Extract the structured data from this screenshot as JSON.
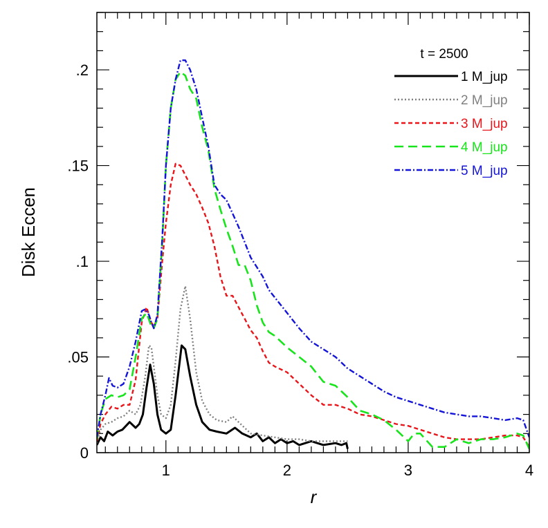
{
  "chart_data": {
    "type": "line",
    "title": "",
    "xlabel": "r",
    "ylabel": "Disk Eccen",
    "xlim": [
      0.43,
      4.0
    ],
    "ylim": [
      0,
      0.23
    ],
    "x_ticks": [
      {
        "value": 1,
        "label": "1"
      },
      {
        "value": 2,
        "label": "2"
      },
      {
        "value": 3,
        "label": "3"
      },
      {
        "value": 4,
        "label": "4"
      }
    ],
    "y_ticks": [
      {
        "value": 0,
        "label": "0"
      },
      {
        "value": 0.05,
        "label": ".05"
      },
      {
        "value": 0.1,
        "label": ".1"
      },
      {
        "value": 0.15,
        "label": ".15"
      },
      {
        "value": 0.2,
        "label": ".2"
      }
    ],
    "x_minor_step": 0.1,
    "y_minor_step": 0.01,
    "grid": false,
    "legend": {
      "title": "t = 2500",
      "position": "top-right"
    },
    "series": [
      {
        "name": "1 M_jup",
        "color": "#000000",
        "dash": "solid",
        "points": [
          [
            0.43,
            0.004
          ],
          [
            0.46,
            0.008
          ],
          [
            0.49,
            0.006
          ],
          [
            0.52,
            0.011
          ],
          [
            0.56,
            0.009
          ],
          [
            0.6,
            0.011
          ],
          [
            0.64,
            0.012
          ],
          [
            0.7,
            0.016
          ],
          [
            0.75,
            0.013
          ],
          [
            0.78,
            0.015
          ],
          [
            0.81,
            0.02
          ],
          [
            0.84,
            0.034
          ],
          [
            0.87,
            0.046
          ],
          [
            0.9,
            0.036
          ],
          [
            0.93,
            0.02
          ],
          [
            0.96,
            0.012
          ],
          [
            1.0,
            0.01
          ],
          [
            1.04,
            0.012
          ],
          [
            1.08,
            0.03
          ],
          [
            1.13,
            0.056
          ],
          [
            1.16,
            0.054
          ],
          [
            1.2,
            0.04
          ],
          [
            1.25,
            0.025
          ],
          [
            1.3,
            0.016
          ],
          [
            1.36,
            0.012
          ],
          [
            1.42,
            0.011
          ],
          [
            1.5,
            0.01
          ],
          [
            1.57,
            0.013
          ],
          [
            1.63,
            0.01
          ],
          [
            1.7,
            0.008
          ],
          [
            1.75,
            0.01
          ],
          [
            1.8,
            0.006
          ],
          [
            1.85,
            0.008
          ],
          [
            1.9,
            0.005
          ],
          [
            1.95,
            0.007
          ],
          [
            2.0,
            0.005
          ],
          [
            2.05,
            0.006
          ],
          [
            2.1,
            0.004
          ],
          [
            2.2,
            0.006
          ],
          [
            2.3,
            0.004
          ],
          [
            2.4,
            0.005
          ],
          [
            2.45,
            0.004
          ],
          [
            2.49,
            0.005
          ],
          [
            2.5,
            0.002
          ]
        ]
      },
      {
        "name": "2 M_jup",
        "color": "#808080",
        "dash": "dotted",
        "points": [
          [
            0.43,
            0.005
          ],
          [
            0.46,
            0.012
          ],
          [
            0.5,
            0.015
          ],
          [
            0.55,
            0.016
          ],
          [
            0.6,
            0.018
          ],
          [
            0.65,
            0.019
          ],
          [
            0.7,
            0.022
          ],
          [
            0.75,
            0.02
          ],
          [
            0.79,
            0.025
          ],
          [
            0.83,
            0.04
          ],
          [
            0.86,
            0.056
          ],
          [
            0.88,
            0.055
          ],
          [
            0.9,
            0.045
          ],
          [
            0.93,
            0.03
          ],
          [
            0.96,
            0.02
          ],
          [
            1.0,
            0.018
          ],
          [
            1.04,
            0.025
          ],
          [
            1.08,
            0.048
          ],
          [
            1.12,
            0.075
          ],
          [
            1.16,
            0.087
          ],
          [
            1.2,
            0.07
          ],
          [
            1.25,
            0.042
          ],
          [
            1.3,
            0.027
          ],
          [
            1.36,
            0.02
          ],
          [
            1.42,
            0.017
          ],
          [
            1.5,
            0.016
          ],
          [
            1.55,
            0.019
          ],
          [
            1.6,
            0.016
          ],
          [
            1.7,
            0.01
          ],
          [
            1.8,
            0.009
          ],
          [
            1.9,
            0.008
          ],
          [
            2.0,
            0.007
          ],
          [
            2.1,
            0.007
          ],
          [
            2.2,
            0.006
          ],
          [
            2.3,
            0.006
          ],
          [
            2.4,
            0.006
          ],
          [
            2.5,
            0.006
          ]
        ]
      },
      {
        "name": "3 M_jup",
        "color": "#e8161b",
        "dash": "dashed",
        "points": [
          [
            0.43,
            0.006
          ],
          [
            0.46,
            0.015
          ],
          [
            0.5,
            0.02
          ],
          [
            0.55,
            0.024
          ],
          [
            0.6,
            0.023
          ],
          [
            0.65,
            0.025
          ],
          [
            0.7,
            0.025
          ],
          [
            0.75,
            0.038
          ],
          [
            0.8,
            0.068
          ],
          [
            0.84,
            0.076
          ],
          [
            0.88,
            0.068
          ],
          [
            0.9,
            0.066
          ],
          [
            0.93,
            0.07
          ],
          [
            0.97,
            0.1
          ],
          [
            1.0,
            0.12
          ],
          [
            1.04,
            0.14
          ],
          [
            1.08,
            0.151
          ],
          [
            1.12,
            0.15
          ],
          [
            1.16,
            0.145
          ],
          [
            1.2,
            0.14
          ],
          [
            1.25,
            0.135
          ],
          [
            1.3,
            0.128
          ],
          [
            1.35,
            0.12
          ],
          [
            1.4,
            0.108
          ],
          [
            1.45,
            0.092
          ],
          [
            1.5,
            0.082
          ],
          [
            1.55,
            0.082
          ],
          [
            1.6,
            0.076
          ],
          [
            1.65,
            0.07
          ],
          [
            1.7,
            0.064
          ],
          [
            1.75,
            0.06
          ],
          [
            1.8,
            0.053
          ],
          [
            1.85,
            0.047
          ],
          [
            1.9,
            0.045
          ],
          [
            2.0,
            0.042
          ],
          [
            2.1,
            0.036
          ],
          [
            2.2,
            0.03
          ],
          [
            2.3,
            0.025
          ],
          [
            2.4,
            0.025
          ],
          [
            2.5,
            0.023
          ],
          [
            2.6,
            0.02
          ],
          [
            2.7,
            0.019
          ],
          [
            2.8,
            0.017
          ],
          [
            2.9,
            0.015
          ],
          [
            3.0,
            0.014
          ],
          [
            3.1,
            0.012
          ],
          [
            3.2,
            0.01
          ],
          [
            3.3,
            0.008
          ],
          [
            3.4,
            0.007
          ],
          [
            3.5,
            0.007
          ],
          [
            3.6,
            0.007
          ],
          [
            3.7,
            0.008
          ],
          [
            3.8,
            0.009
          ],
          [
            3.9,
            0.009
          ],
          [
            3.95,
            0.008
          ],
          [
            4.0,
            0.003
          ]
        ]
      },
      {
        "name": "4 M_jup",
        "color": "#17e41a",
        "dash": "long-dashed",
        "points": [
          [
            0.43,
            0.007
          ],
          [
            0.46,
            0.02
          ],
          [
            0.5,
            0.028
          ],
          [
            0.55,
            0.03
          ],
          [
            0.6,
            0.029
          ],
          [
            0.65,
            0.03
          ],
          [
            0.7,
            0.033
          ],
          [
            0.75,
            0.05
          ],
          [
            0.8,
            0.07
          ],
          [
            0.84,
            0.073
          ],
          [
            0.88,
            0.066
          ],
          [
            0.9,
            0.065
          ],
          [
            0.93,
            0.07
          ],
          [
            0.97,
            0.11
          ],
          [
            1.0,
            0.15
          ],
          [
            1.04,
            0.18
          ],
          [
            1.08,
            0.195
          ],
          [
            1.12,
            0.199
          ],
          [
            1.16,
            0.197
          ],
          [
            1.2,
            0.19
          ],
          [
            1.25,
            0.185
          ],
          [
            1.3,
            0.17
          ],
          [
            1.35,
            0.158
          ],
          [
            1.4,
            0.138
          ],
          [
            1.45,
            0.127
          ],
          [
            1.5,
            0.117
          ],
          [
            1.55,
            0.108
          ],
          [
            1.6,
            0.098
          ],
          [
            1.65,
            0.098
          ],
          [
            1.7,
            0.09
          ],
          [
            1.75,
            0.077
          ],
          [
            1.8,
            0.068
          ],
          [
            1.85,
            0.063
          ],
          [
            1.9,
            0.061
          ],
          [
            2.0,
            0.055
          ],
          [
            2.1,
            0.05
          ],
          [
            2.2,
            0.045
          ],
          [
            2.3,
            0.037
          ],
          [
            2.4,
            0.035
          ],
          [
            2.5,
            0.029
          ],
          [
            2.6,
            0.022
          ],
          [
            2.7,
            0.02
          ],
          [
            2.8,
            0.017
          ],
          [
            2.9,
            0.012
          ],
          [
            3.0,
            0.006
          ],
          [
            3.05,
            0.01
          ],
          [
            3.1,
            0.01
          ],
          [
            3.2,
            0.003
          ],
          [
            3.3,
            0.003
          ],
          [
            3.4,
            0.007
          ],
          [
            3.5,
            0.005
          ],
          [
            3.6,
            0.007
          ],
          [
            3.7,
            0.007
          ],
          [
            3.8,
            0.008
          ],
          [
            3.9,
            0.01
          ],
          [
            3.95,
            0.009
          ],
          [
            4.0,
            0.002
          ]
        ]
      },
      {
        "name": "5 M_jup",
        "color": "#1414d8",
        "dash": "dash-dot",
        "points": [
          [
            0.43,
            0.008
          ],
          [
            0.46,
            0.02
          ],
          [
            0.5,
            0.03
          ],
          [
            0.53,
            0.039
          ],
          [
            0.56,
            0.035
          ],
          [
            0.6,
            0.034
          ],
          [
            0.65,
            0.036
          ],
          [
            0.7,
            0.045
          ],
          [
            0.75,
            0.058
          ],
          [
            0.8,
            0.074
          ],
          [
            0.83,
            0.075
          ],
          [
            0.86,
            0.072
          ],
          [
            0.88,
            0.068
          ],
          [
            0.9,
            0.065
          ],
          [
            0.93,
            0.072
          ],
          [
            0.97,
            0.112
          ],
          [
            1.0,
            0.15
          ],
          [
            1.04,
            0.18
          ],
          [
            1.08,
            0.195
          ],
          [
            1.12,
            0.205
          ],
          [
            1.16,
            0.205
          ],
          [
            1.2,
            0.2
          ],
          [
            1.25,
            0.19
          ],
          [
            1.3,
            0.175
          ],
          [
            1.35,
            0.16
          ],
          [
            1.4,
            0.14
          ],
          [
            1.45,
            0.135
          ],
          [
            1.5,
            0.132
          ],
          [
            1.55,
            0.125
          ],
          [
            1.6,
            0.118
          ],
          [
            1.65,
            0.11
          ],
          [
            1.7,
            0.102
          ],
          [
            1.75,
            0.097
          ],
          [
            1.8,
            0.092
          ],
          [
            1.85,
            0.085
          ],
          [
            1.9,
            0.081
          ],
          [
            2.0,
            0.073
          ],
          [
            2.1,
            0.065
          ],
          [
            2.2,
            0.058
          ],
          [
            2.3,
            0.054
          ],
          [
            2.4,
            0.05
          ],
          [
            2.5,
            0.044
          ],
          [
            2.6,
            0.04
          ],
          [
            2.7,
            0.036
          ],
          [
            2.8,
            0.032
          ],
          [
            2.9,
            0.029
          ],
          [
            3.0,
            0.027
          ],
          [
            3.1,
            0.025
          ],
          [
            3.2,
            0.023
          ],
          [
            3.3,
            0.021
          ],
          [
            3.4,
            0.02
          ],
          [
            3.5,
            0.019
          ],
          [
            3.6,
            0.019
          ],
          [
            3.7,
            0.018
          ],
          [
            3.8,
            0.017
          ],
          [
            3.9,
            0.018
          ],
          [
            3.95,
            0.017
          ],
          [
            4.0,
            0.008
          ]
        ]
      }
    ]
  }
}
